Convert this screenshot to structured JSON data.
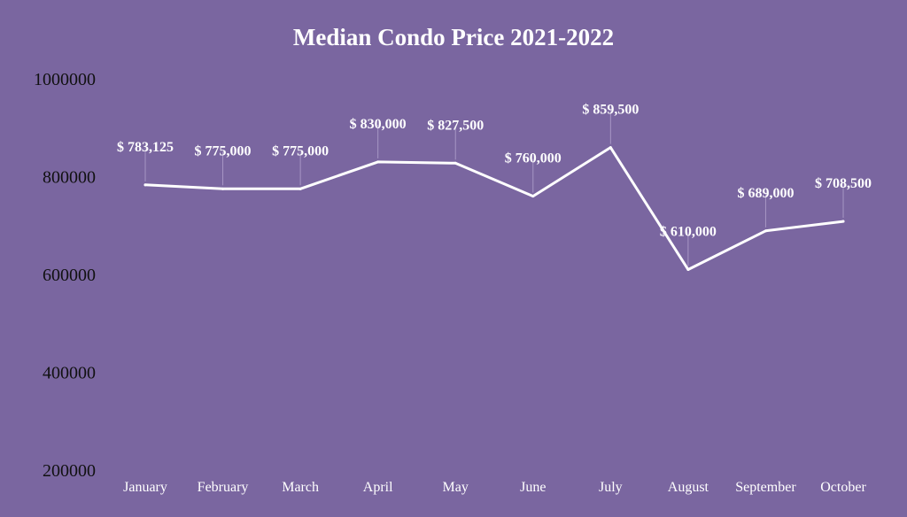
{
  "chart_data": {
    "type": "line",
    "title": "Median Condo Price 2021-2022",
    "xlabel": "",
    "ylabel": "",
    "categories": [
      "January",
      "February",
      "March",
      "April",
      "May",
      "June",
      "July",
      "August",
      "September",
      "October"
    ],
    "values": [
      783125,
      775000,
      775000,
      830000,
      827500,
      760000,
      859500,
      610000,
      689000,
      708500
    ],
    "data_labels": [
      "$ 783,125",
      "$ 775,000",
      "$ 775,000",
      "$ 830,000",
      "$ 827,500",
      "$ 760,000",
      "$ 859,500",
      "$ 610,000",
      "$ 689,000",
      "$ 708,500"
    ],
    "y_ticks": [
      "200000",
      "400000",
      "600000",
      "800000",
      "1000000"
    ],
    "ylim": [
      200000,
      1000000
    ],
    "grid": false,
    "legend": "none",
    "colors": {
      "background": "#7a66a0",
      "line": "#ffffff",
      "title": "#ffffff",
      "y_tick": "#111111",
      "x_tick": "#ffffff",
      "leader": "#a796c4"
    }
  }
}
